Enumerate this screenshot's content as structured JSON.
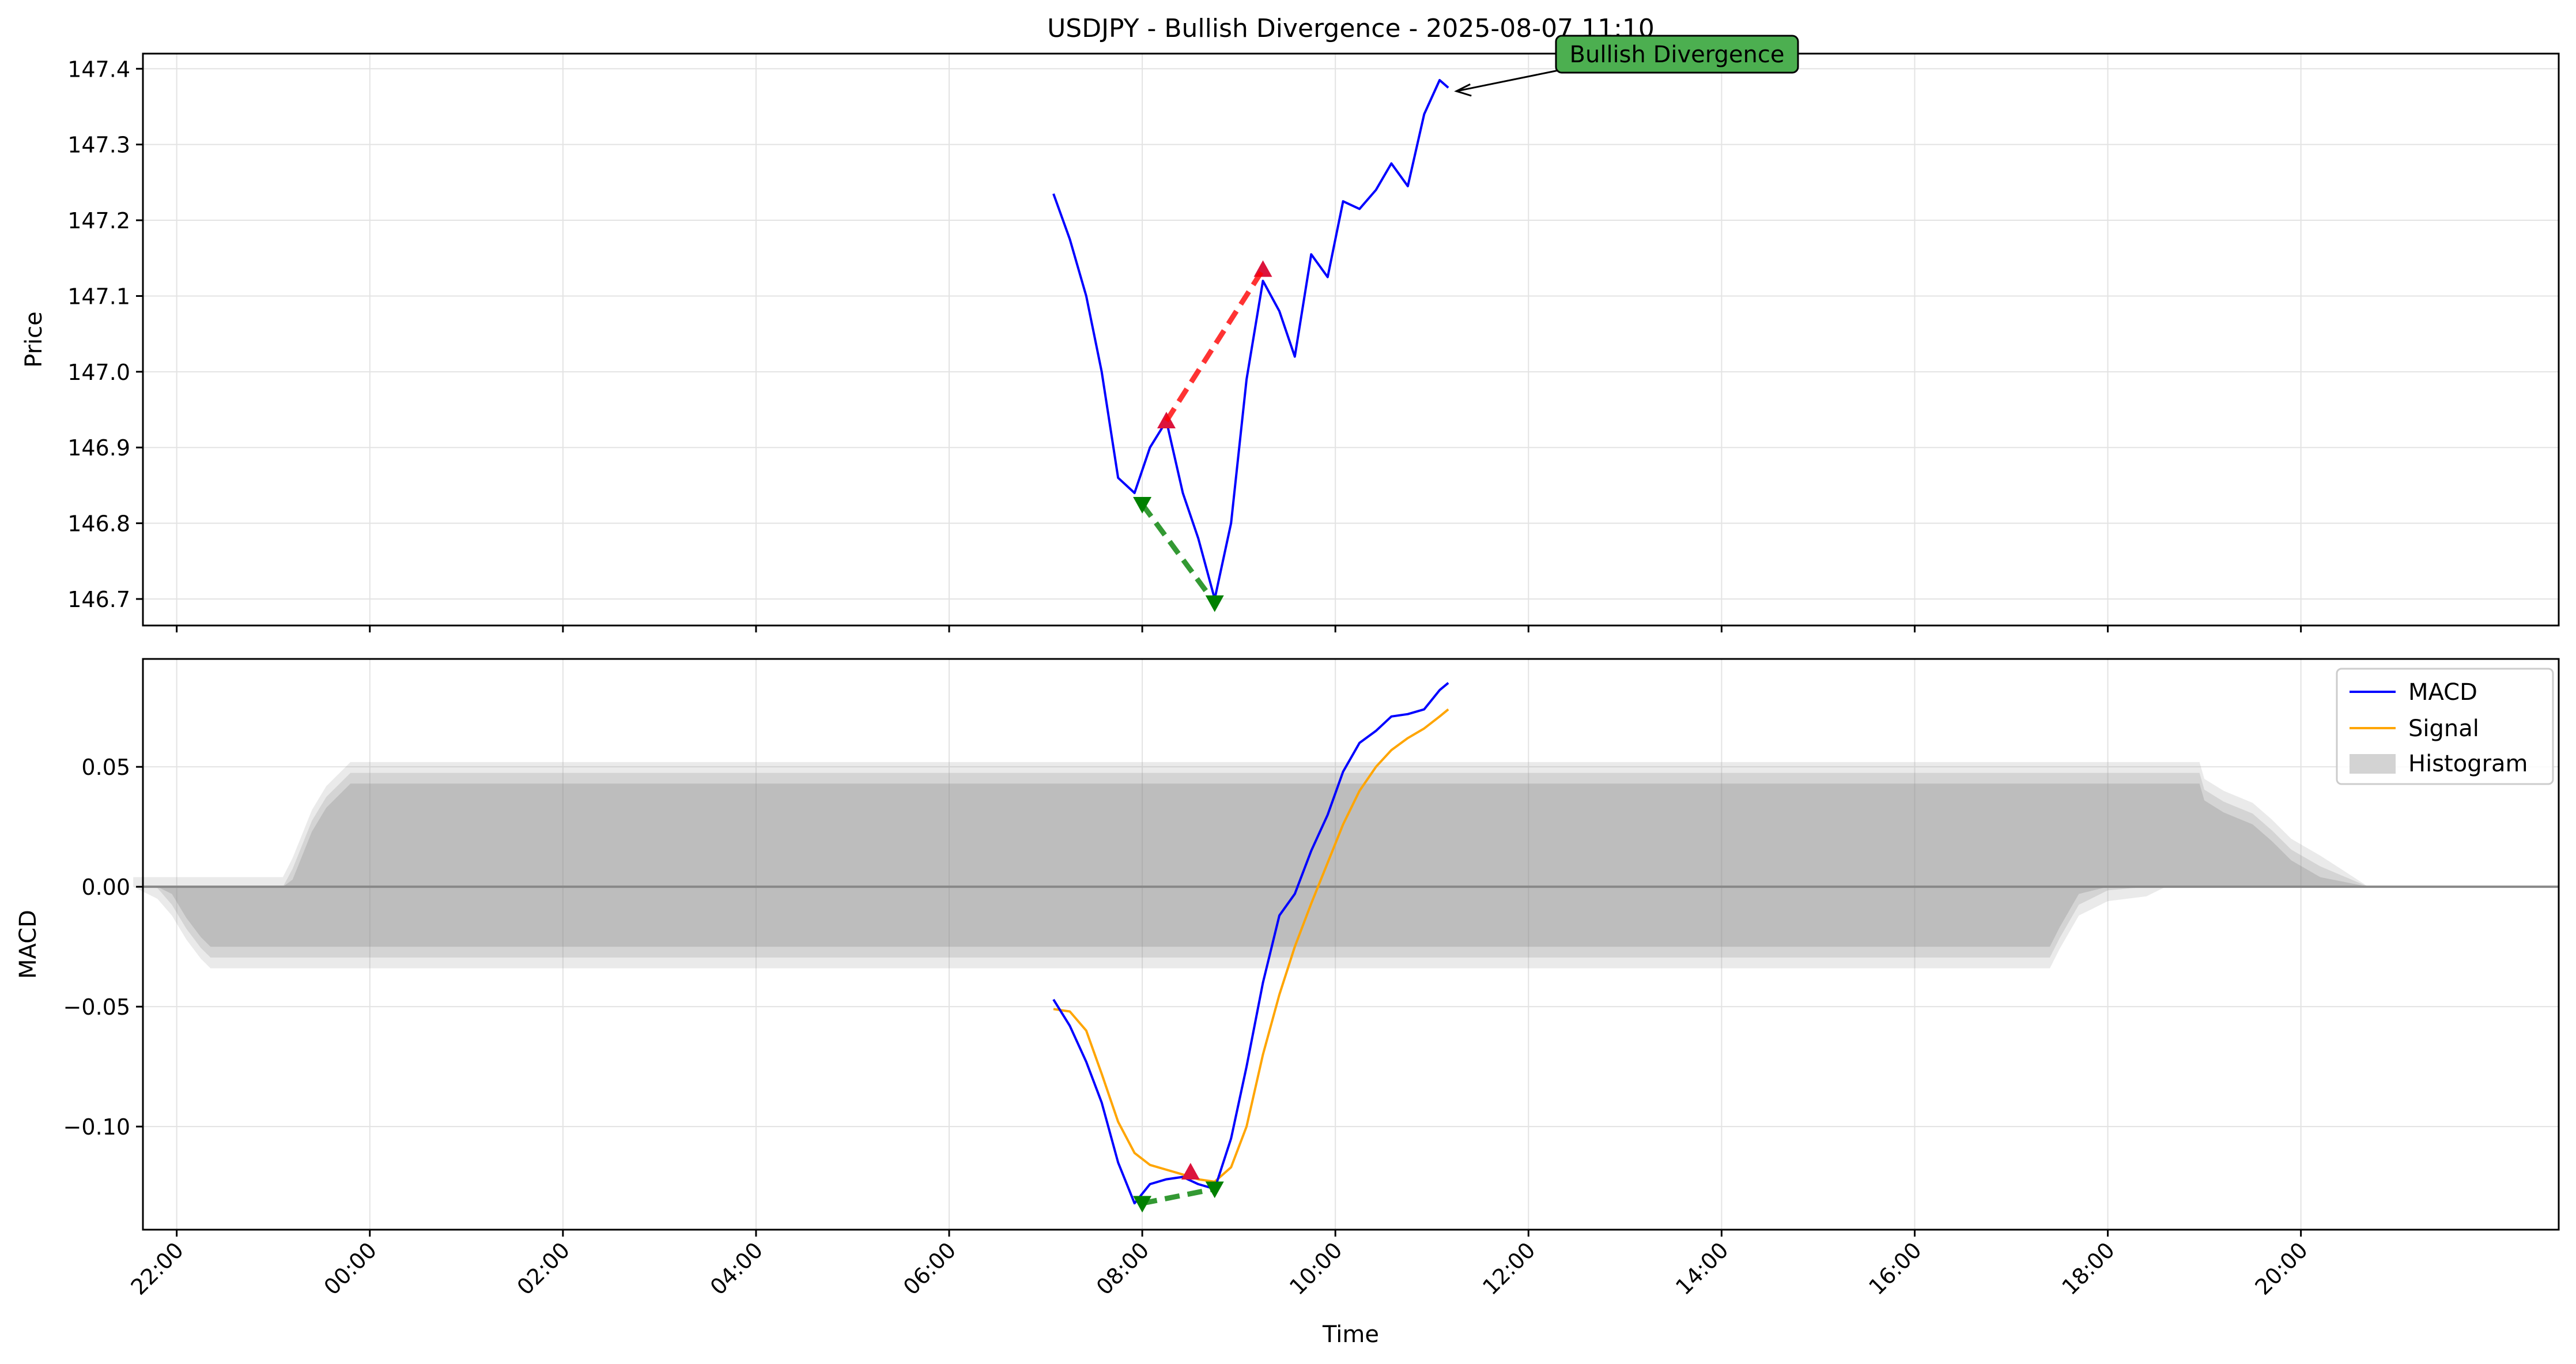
{
  "chart_data": [
    {
      "type": "line",
      "title": "USDJPY - Bullish Divergence - 2025-08-07 11:10",
      "xlabel": "",
      "ylabel": "Price",
      "ylim": [
        146.665,
        147.42
      ],
      "xlim": [
        -2.35,
        22.67
      ],
      "yticks": [
        146.7,
        146.8,
        146.9,
        147.0,
        147.1,
        147.2,
        147.3,
        147.4
      ],
      "ytick_labels": [
        "146.7",
        "146.8",
        "146.9",
        "147.0",
        "147.1",
        "147.2",
        "147.3",
        "147.4"
      ],
      "grid": true,
      "series": [
        {
          "name": "Price",
          "color": "#0000ff",
          "x": [
            7.08,
            7.25,
            7.42,
            7.58,
            7.75,
            7.92,
            8.08,
            8.25,
            8.42,
            8.58,
            8.75,
            8.92,
            9.08,
            9.25,
            9.42,
            9.58,
            9.75,
            9.92,
            10.08,
            10.25,
            10.42,
            10.58,
            10.75,
            10.92,
            11.08,
            11.17
          ],
          "values": [
            147.235,
            147.175,
            147.1,
            147.0,
            146.86,
            146.84,
            146.9,
            146.935,
            146.84,
            146.78,
            146.7,
            146.8,
            146.99,
            147.12,
            147.08,
            147.02,
            147.155,
            147.125,
            147.225,
            147.215,
            147.24,
            147.275,
            147.245,
            147.34,
            147.385,
            147.375
          ]
        }
      ],
      "divergence_lines": [
        {
          "color": "#ff0000",
          "x": [
            8.25,
            9.25
          ],
          "values": [
            146.935,
            147.135
          ]
        },
        {
          "color": "#008000",
          "x": [
            8.0,
            8.75
          ],
          "values": [
            146.825,
            146.695
          ]
        }
      ],
      "annotation": {
        "text": "Bullish Divergence",
        "x": 11.17,
        "y": 147.375,
        "box_color": "#4caf50"
      }
    },
    {
      "type": "line",
      "xlabel": "Time",
      "ylabel": "MACD",
      "ylim": [
        -0.143,
        0.095
      ],
      "xlim": [
        -2.35,
        22.67
      ],
      "yticks": [
        -0.1,
        -0.05,
        0.0,
        0.05
      ],
      "ytick_labels": [
        "−0.10",
        "−0.05",
        "0.00",
        "0.05"
      ],
      "xticks": [
        -2,
        0,
        2,
        4,
        6,
        8,
        10,
        12,
        14,
        16,
        18,
        20
      ],
      "xtick_labels": [
        "22:00",
        "00:00",
        "02:00",
        "04:00",
        "06:00",
        "08:00",
        "10:00",
        "12:00",
        "14:00",
        "16:00",
        "18:00",
        "20:00"
      ],
      "grid": true,
      "legend": [
        "MACD",
        "Signal",
        "Histogram"
      ],
      "legend_position": "top-right",
      "series": [
        {
          "name": "MACD",
          "color": "#0000ff",
          "x": [
            7.08,
            7.25,
            7.42,
            7.58,
            7.75,
            7.92,
            8.08,
            8.25,
            8.42,
            8.58,
            8.75,
            8.92,
            9.08,
            9.25,
            9.42,
            9.58,
            9.75,
            9.92,
            10.08,
            10.25,
            10.42,
            10.58,
            10.75,
            10.92,
            11.08,
            11.17
          ],
          "values": [
            -0.047,
            -0.058,
            -0.073,
            -0.09,
            -0.115,
            -0.132,
            -0.124,
            -0.122,
            -0.121,
            -0.124,
            -0.126,
            -0.105,
            -0.075,
            -0.04,
            -0.012,
            -0.003,
            0.015,
            0.03,
            0.048,
            0.06,
            0.065,
            0.071,
            0.072,
            0.074,
            0.082,
            0.085
          ]
        },
        {
          "name": "Signal",
          "color": "#ffa500",
          "x": [
            7.08,
            7.25,
            7.42,
            7.58,
            7.75,
            7.92,
            8.08,
            8.25,
            8.42,
            8.58,
            8.75,
            8.92,
            9.08,
            9.25,
            9.42,
            9.58,
            9.75,
            9.92,
            10.08,
            10.25,
            10.42,
            10.58,
            10.75,
            10.92,
            11.08,
            11.17
          ],
          "values": [
            -0.051,
            -0.052,
            -0.06,
            -0.078,
            -0.098,
            -0.111,
            -0.116,
            -0.118,
            -0.12,
            -0.122,
            -0.123,
            -0.117,
            -0.1,
            -0.07,
            -0.045,
            -0.025,
            -0.007,
            0.01,
            0.026,
            0.04,
            0.05,
            0.057,
            0.062,
            0.066,
            0.071,
            0.074
          ]
        }
      ],
      "histogram": {
        "name": "Histogram",
        "color": "#888888",
        "upper_envelope": [
          [
            -2.45,
            0.004
          ],
          [
            -0.9,
            0.004
          ],
          [
            -0.8,
            0.012
          ],
          [
            -0.7,
            0.022
          ],
          [
            -0.6,
            0.032
          ],
          [
            -0.45,
            0.042
          ],
          [
            -0.3,
            0.048
          ],
          [
            -0.2,
            0.052
          ],
          [
            18.95,
            0.052
          ],
          [
            19.0,
            0.045
          ],
          [
            19.2,
            0.04
          ],
          [
            19.5,
            0.035
          ],
          [
            19.7,
            0.028
          ],
          [
            19.9,
            0.02
          ],
          [
            20.2,
            0.013
          ],
          [
            20.7,
            0.0
          ]
        ],
        "lower_envelope": [
          [
            -2.45,
            0.0
          ],
          [
            -2.2,
            -0.005
          ],
          [
            -2.05,
            -0.012
          ],
          [
            -1.9,
            -0.022
          ],
          [
            -1.75,
            -0.03
          ],
          [
            -1.65,
            -0.034
          ],
          [
            17.4,
            -0.034
          ],
          [
            17.5,
            -0.026
          ],
          [
            17.7,
            -0.012
          ],
          [
            18.0,
            -0.006
          ],
          [
            18.4,
            -0.004
          ],
          [
            18.6,
            0.0
          ]
        ]
      },
      "divergence_lines": [
        {
          "color": "#008000",
          "x": [
            8.0,
            8.75
          ],
          "values": [
            -0.132,
            -0.126
          ]
        }
      ],
      "markers": [
        {
          "type": "triangle-up",
          "color": "#dc143c",
          "x": 8.5,
          "y": -0.119
        },
        {
          "type": "triangle-down",
          "color": "#008000",
          "x": 8.0,
          "y": -0.132
        },
        {
          "type": "triangle-down",
          "color": "#008000",
          "x": 8.75,
          "y": -0.126
        }
      ]
    }
  ]
}
